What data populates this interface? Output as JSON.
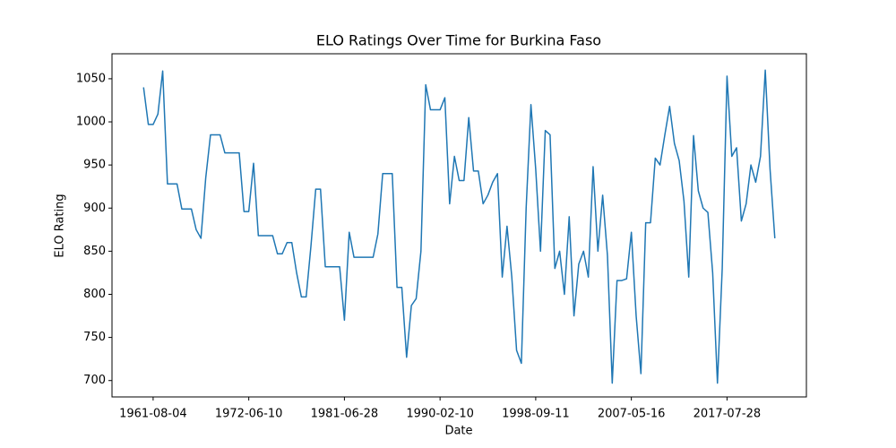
{
  "chart_data": {
    "type": "line",
    "title": "ELO Ratings Over Time for Burkina Faso",
    "xlabel": "Date",
    "ylabel": "ELO Rating",
    "categories": [
      null,
      null,
      "1961-08-04",
      null,
      null,
      null,
      null,
      null,
      null,
      null,
      null,
      null,
      null,
      null,
      null,
      null,
      null,
      null,
      null,
      null,
      null,
      null,
      "1972-06-10",
      null,
      null,
      null,
      null,
      null,
      null,
      null,
      null,
      null,
      null,
      null,
      null,
      null,
      null,
      null,
      null,
      null,
      null,
      null,
      "1981-06-28",
      null,
      null,
      null,
      null,
      null,
      null,
      null,
      null,
      null,
      null,
      null,
      null,
      null,
      null,
      null,
      null,
      null,
      null,
      null,
      "1990-02-10",
      null,
      null,
      null,
      null,
      null,
      null,
      null,
      null,
      null,
      null,
      null,
      null,
      null,
      null,
      null,
      null,
      null,
      null,
      null,
      "1998-09-11",
      null,
      null,
      null,
      null,
      null,
      null,
      null,
      null,
      null,
      null,
      null,
      null,
      null,
      null,
      null,
      null,
      null,
      null,
      null,
      "2007-05-16",
      null,
      null,
      null,
      null,
      null,
      null,
      null,
      null,
      null,
      null,
      null,
      null,
      null,
      null,
      null,
      null,
      null,
      null,
      null,
      "2017-07-28",
      null,
      null,
      null,
      null,
      null,
      null,
      null,
      null,
      null,
      null
    ],
    "values": [
      1040,
      997,
      997,
      1009,
      1059,
      928,
      928,
      928,
      899,
      899,
      899,
      875,
      865,
      935,
      985,
      985,
      985,
      964,
      964,
      964,
      964,
      896,
      896,
      952,
      868,
      868,
      868,
      868,
      847,
      847,
      860,
      860,
      825,
      797,
      797,
      856,
      922,
      922,
      832,
      832,
      832,
      832,
      770,
      872,
      843,
      843,
      843,
      843,
      843,
      870,
      940,
      940,
      940,
      808,
      808,
      727,
      787,
      795,
      850,
      1043,
      1014,
      1014,
      1014,
      1028,
      905,
      960,
      932,
      932,
      1005,
      943,
      943,
      905,
      915,
      930,
      940,
      820,
      879,
      820,
      735,
      720,
      900,
      1020,
      945,
      850,
      990,
      985,
      830,
      850,
      800,
      890,
      775,
      835,
      850,
      820,
      948,
      850,
      915,
      845,
      697,
      816,
      816,
      818,
      872,
      775,
      708,
      883,
      883,
      958,
      950,
      985,
      1018,
      975,
      955,
      908,
      820,
      984,
      920,
      900,
      895,
      825,
      697,
      830,
      1053,
      960,
      970,
      885,
      905,
      950,
      930,
      960,
      1060,
      945,
      865
    ],
    "color": "#1f77b4",
    "ylim": [
      681,
      1079
    ],
    "yticks": [
      700,
      750,
      800,
      850,
      900,
      950,
      1000,
      1050
    ]
  }
}
